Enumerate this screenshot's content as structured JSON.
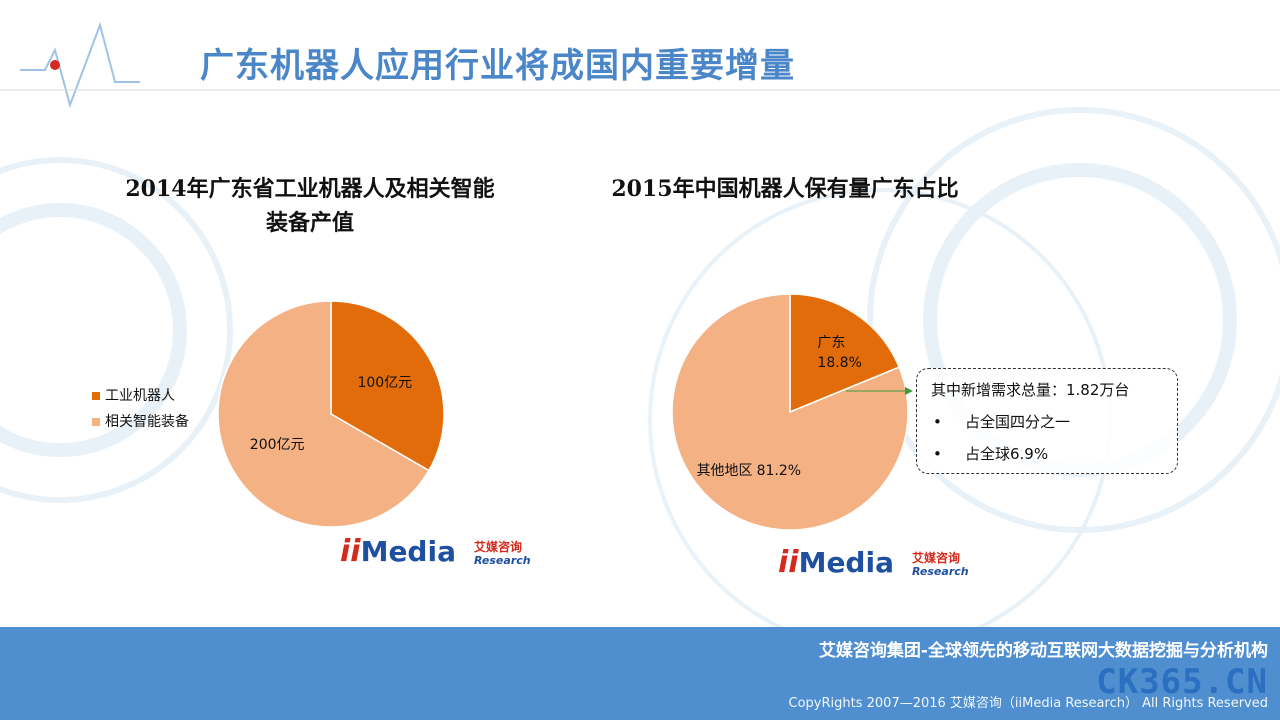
{
  "header": {
    "title": "广东机器人应用行业将成国内重要增量"
  },
  "chart_data": [
    {
      "type": "pie",
      "title": "2014年广东省工业机器人及相关智能装备产值",
      "categories": [
        "工业机器人",
        "相关智能装备"
      ],
      "values": [
        100,
        200
      ],
      "value_labels": [
        "100亿元",
        "200亿元"
      ],
      "colors": [
        "#e36c0a",
        "#f4b183"
      ],
      "legend": "left",
      "data_labels": "value"
    },
    {
      "type": "pie",
      "title": "2015年中国机器人保有量广东占比",
      "categories": [
        "广东",
        "其他地区"
      ],
      "values": [
        18.8,
        81.2
      ],
      "value_labels": [
        "18.8%",
        "81.2%"
      ],
      "colors": [
        "#e36c0a",
        "#f4b183"
      ],
      "data_labels": "category_value"
    }
  ],
  "callout": {
    "heading": "其中新增需求总量：1.82万台",
    "bullets": [
      "占全国四分之一",
      "占全球6.9%"
    ]
  },
  "logo": {
    "prefix": "ii",
    "brand": "Media",
    "cn": "艾媒咨询",
    "en": "Research"
  },
  "footer": {
    "slogan": "艾媒咨询集团-全球领先的移动互联网大数据挖掘与分析机构",
    "copyright": "CopyRights  2007—2016  艾媒咨询（iiMedia Research）  All Rights Reserved",
    "watermark": "CK365.CN"
  }
}
